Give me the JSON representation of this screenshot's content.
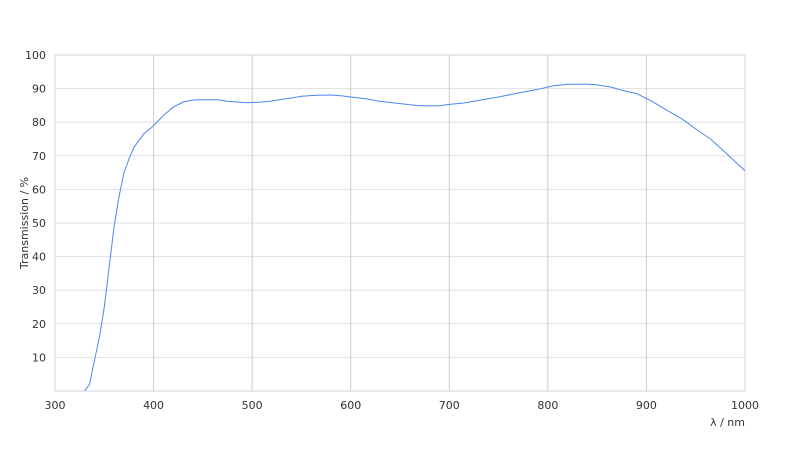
{
  "chart_data": {
    "type": "line",
    "title": "",
    "xlabel": "λ / nm",
    "ylabel": "Transmission / %",
    "xlim": [
      300,
      1000
    ],
    "ylim": [
      0,
      100
    ],
    "xticks": [
      300,
      400,
      500,
      600,
      700,
      800,
      900,
      1000
    ],
    "yticks": [
      10,
      20,
      30,
      40,
      50,
      60,
      70,
      80,
      90,
      100
    ],
    "grid": true,
    "line_color": "#4a86f0",
    "series": [
      {
        "x": [
          330,
          335,
          340,
          345,
          350,
          355,
          360,
          365,
          370,
          375,
          380,
          390,
          400,
          410,
          420,
          430,
          440,
          450,
          465,
          475,
          485,
          495,
          510,
          520,
          530,
          540,
          550,
          565,
          580,
          590,
          600,
          615,
          630,
          645,
          660,
          670,
          690,
          700,
          715,
          730,
          750,
          770,
          790,
          805,
          820,
          840,
          850,
          865,
          875,
          890,
          905,
          920,
          935,
          950,
          965,
          980,
          1000
        ],
        "y": [
          0,
          2,
          9,
          16,
          25,
          37,
          49,
          58,
          65,
          69,
          72.5,
          76.5,
          79,
          82,
          84.5,
          86,
          86.6,
          86.7,
          86.7,
          86.2,
          86,
          85.8,
          86,
          86.3,
          86.8,
          87.2,
          87.7,
          88,
          88.1,
          87.9,
          87.5,
          87,
          86.2,
          85.7,
          85.2,
          84.9,
          84.9,
          85.3,
          85.7,
          86.5,
          87.5,
          88.7,
          89.8,
          90.8,
          91.3,
          91.3,
          91.1,
          90.4,
          89.5,
          88.5,
          86.3,
          83.7,
          81.2,
          78,
          75,
          71,
          65.5
        ]
      }
    ]
  }
}
